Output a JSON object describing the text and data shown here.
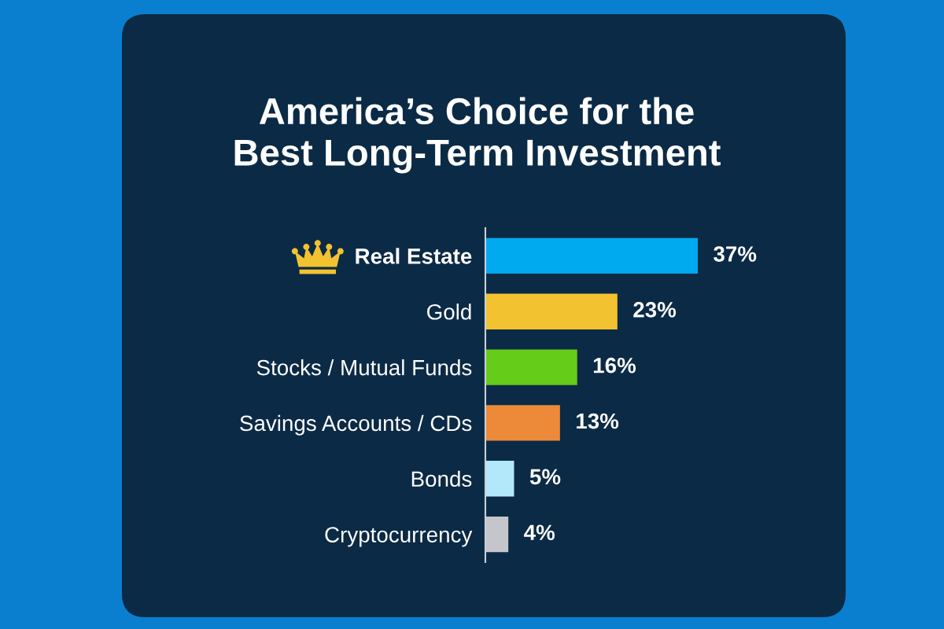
{
  "chart_data": {
    "type": "bar",
    "orientation": "horizontal",
    "title": "America’s Choice for the\nBest Long-Term Investment",
    "categories": [
      "Real Estate",
      "Gold",
      "Stocks / Mutual Funds",
      "Savings Accounts / CDs",
      "Bonds",
      "Cryptocurrency"
    ],
    "values": [
      37,
      23,
      16,
      13,
      5,
      4
    ],
    "value_labels": [
      "37%",
      "23%",
      "16%",
      "13%",
      "5%",
      "4%"
    ],
    "colors": [
      "#00aaef",
      "#f2c230",
      "#66cc1a",
      "#ec8a3a",
      "#b3e8fb",
      "#c4c6cc"
    ],
    "tick_labels": "y"
  }
}
